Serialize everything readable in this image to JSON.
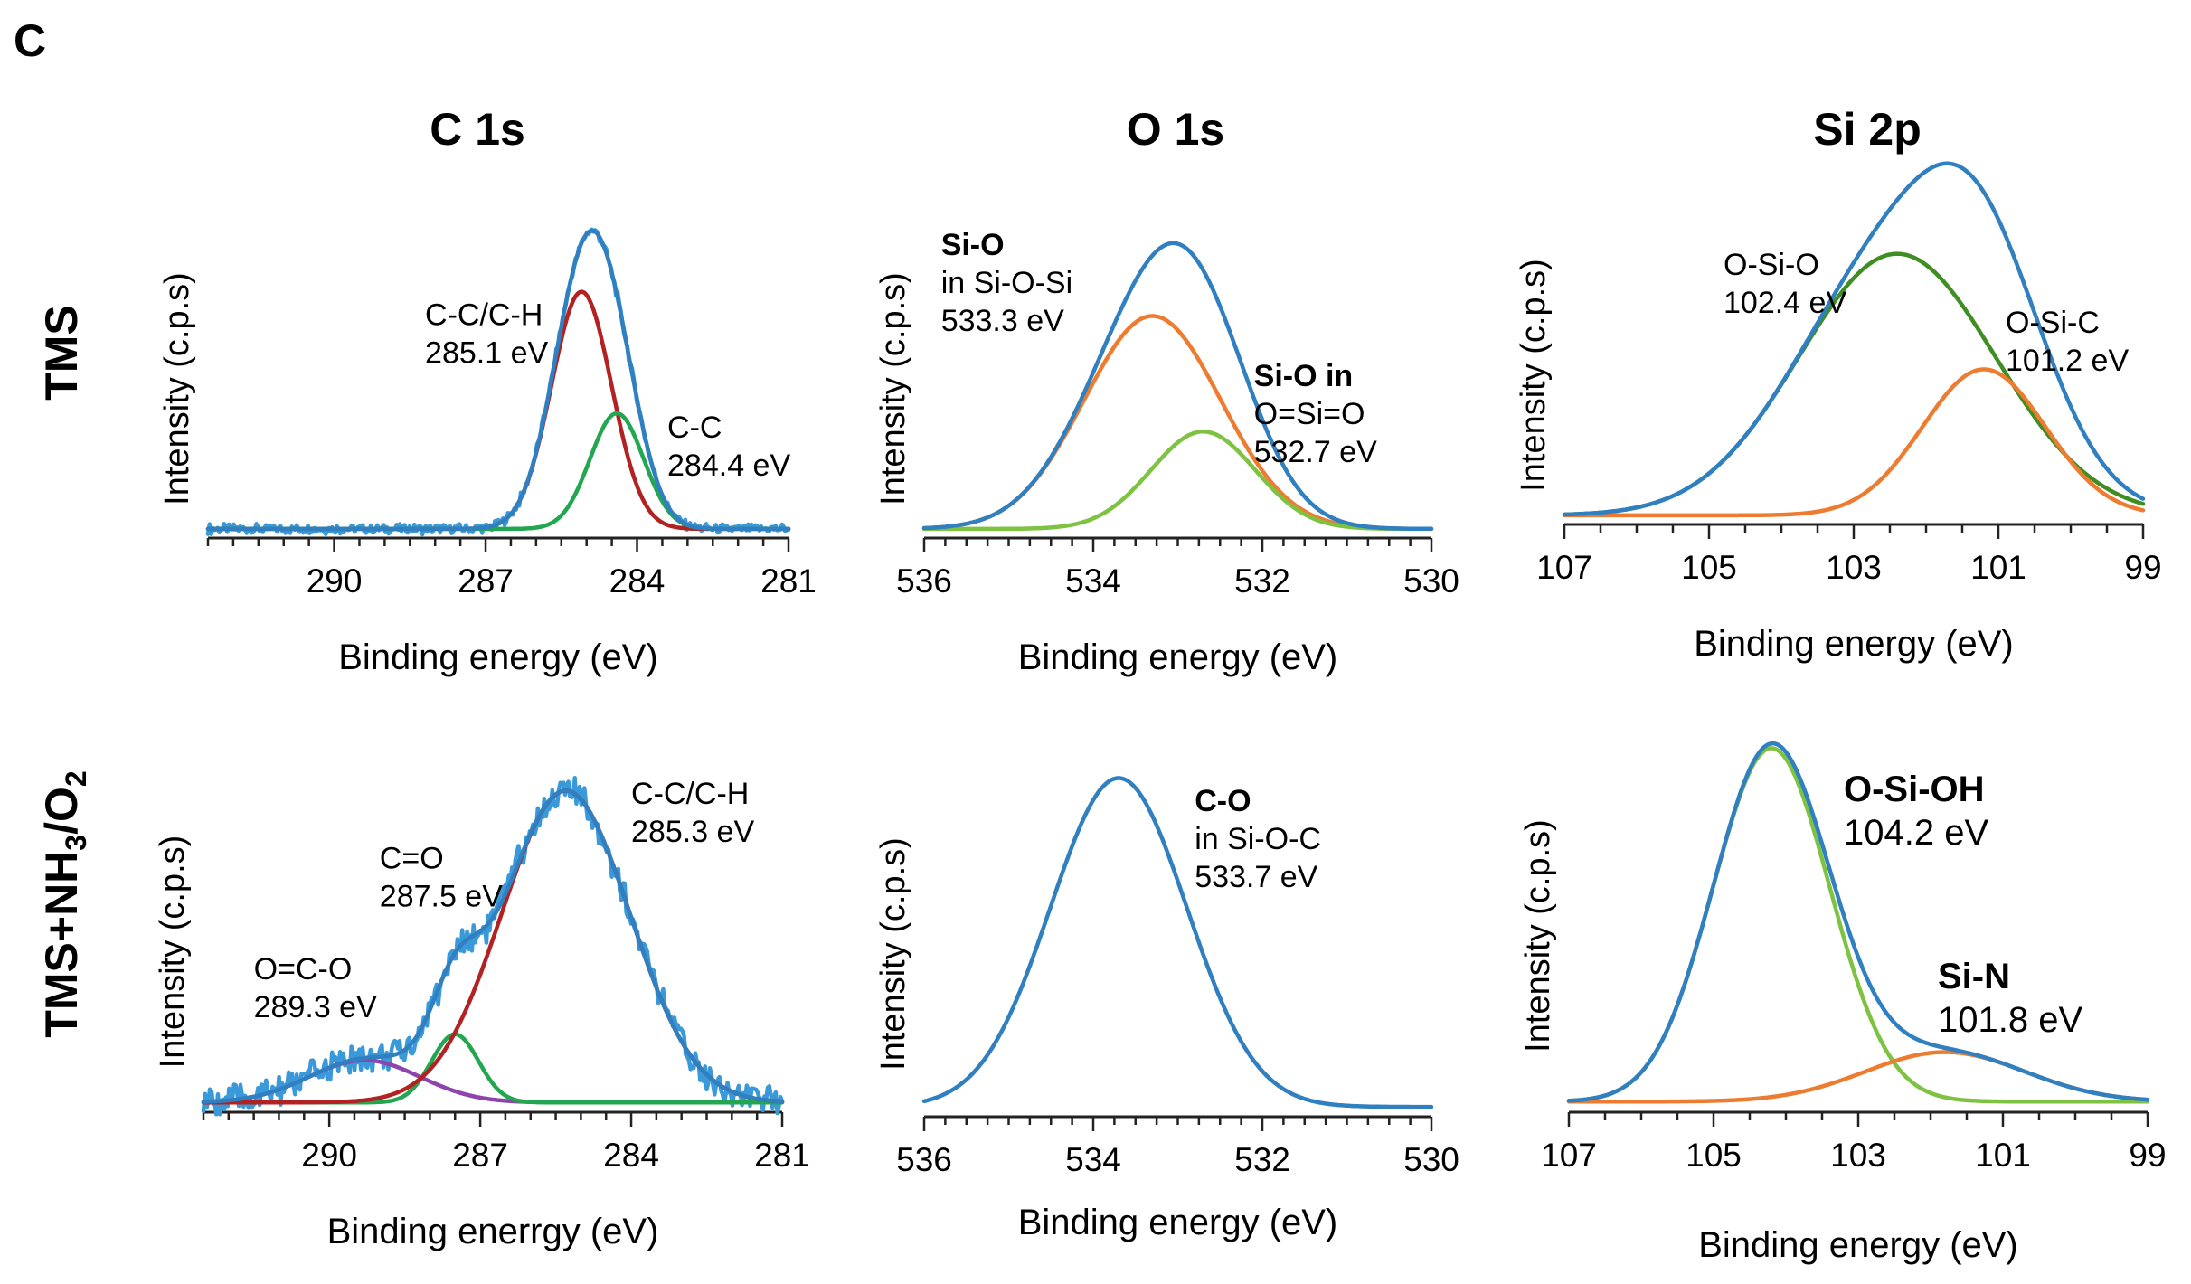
{
  "figure": {
    "panel_letter": "C",
    "column_titles": [
      "C 1s",
      "O 1s",
      "Si 2p"
    ],
    "row_labels": [
      "TMS",
      "TMS+NH3/O2"
    ],
    "colors": {
      "envelope": "#2f7fc1",
      "raw": "#3a9ad9",
      "red": "#b22222",
      "green": "#22a650",
      "orange": "#ee7c30",
      "lightgreen": "#7ec242",
      "darkgreen": "#3e8e21",
      "purple": "#8e44ad"
    }
  },
  "chart_data": [
    {
      "id": "c1s-tms",
      "type": "line",
      "title": "C 1s",
      "row": "TMS",
      "xlabel": "Binding energy (eV)",
      "ylabel": "Intensity (c.p.s)",
      "xlim": [
        292.5,
        281
      ],
      "ylim": [
        0,
        1.1
      ],
      "xticks": [
        290,
        287,
        284,
        281
      ],
      "minor_step": 0.5,
      "noise": 0.012,
      "components": [
        {
          "name": "C-C/C-H",
          "center": 285.1,
          "fwhm": 1.4,
          "height": 0.78,
          "color": "red"
        },
        {
          "name": "C-C",
          "center": 284.4,
          "fwhm": 1.25,
          "height": 0.38,
          "color": "green"
        }
      ],
      "annotations": [
        {
          "lines": [
            "C-C/C-H",
            "285.1 eV"
          ],
          "x": 288.2,
          "y": 0.7,
          "style": "ann"
        },
        {
          "lines": [
            "C-C",
            "284.4 eV"
          ],
          "x": 283.4,
          "y": 0.33,
          "style": "ann"
        }
      ]
    },
    {
      "id": "o1s-tms",
      "type": "line",
      "title": "O 1s",
      "row": "TMS",
      "xlabel": "Binding energy (eV)",
      "ylabel": "Intensity (c.p.s)",
      "xlim": [
        536,
        530
      ],
      "ylim": [
        0,
        1.1
      ],
      "xticks": [
        536,
        534,
        532,
        530
      ],
      "minor_step": 0.25,
      "noise": 0,
      "components": [
        {
          "name": "Si-O in Si-O-Si",
          "center": 533.3,
          "fwhm": 1.9,
          "height": 0.7,
          "color": "orange"
        },
        {
          "name": "Si-O in O=Si=O",
          "center": 532.7,
          "fwhm": 1.45,
          "height": 0.32,
          "color": "lightgreen"
        }
      ],
      "annotations": [
        {
          "lines": [
            "Si-O",
            "in Si-O-Si",
            "533.3 eV"
          ],
          "x": 535.8,
          "y": 0.93,
          "style": "ann",
          "bold_first": true
        },
        {
          "lines": [
            "Si-O in",
            "O=Si=O",
            "532.7 eV"
          ],
          "x": 532.1,
          "y": 0.5,
          "style": "ann",
          "bold_first": true
        }
      ]
    },
    {
      "id": "si2p-tms",
      "type": "line",
      "title": "Si 2p",
      "row": "TMS",
      "xlabel": "Binding energy (eV)",
      "ylabel": "Intensity (c.p.s)",
      "xlim": [
        107,
        99
      ],
      "ylim": [
        0,
        1.1
      ],
      "xticks": [
        107,
        105,
        103,
        101,
        99
      ],
      "minor_step": 0.5,
      "noise": 0,
      "components": [
        {
          "name": "O-Si-O",
          "center": 102.4,
          "fwhm": 3.2,
          "height": 0.86,
          "color": "darkgreen"
        },
        {
          "name": "O-Si-C",
          "center": 101.2,
          "fwhm": 2.0,
          "height": 0.48,
          "color": "orange"
        }
      ],
      "annotations": [
        {
          "lines": [
            "O-Si-O",
            "102.4 eV"
          ],
          "x": 104.8,
          "y": 0.82,
          "style": "ann"
        },
        {
          "lines": [
            "O-Si-C",
            "101.2 eV"
          ],
          "x": 100.9,
          "y": 0.63,
          "style": "ann"
        }
      ]
    },
    {
      "id": "c1s-nh3",
      "type": "line",
      "title": "C 1s",
      "row": "TMS+NH3/O2",
      "xlabel": "Binding enerrgy (eV)",
      "ylabel": "Intensity (c.p.s)",
      "xlim": [
        292.5,
        281
      ],
      "ylim": [
        0,
        1.1
      ],
      "xticks": [
        290,
        287,
        284,
        281
      ],
      "minor_step": 0.5,
      "noise": 0.035,
      "components": [
        {
          "name": "O=C-O",
          "center": 289.3,
          "fwhm": 2.6,
          "height": 0.13,
          "color": "purple"
        },
        {
          "name": "C=O",
          "center": 287.5,
          "fwhm": 1.1,
          "height": 0.21,
          "color": "green"
        },
        {
          "name": "C-C/C-H",
          "center": 285.3,
          "fwhm": 3.0,
          "height": 0.96,
          "color": "red"
        }
      ],
      "annotations": [
        {
          "lines": [
            "O=C-O",
            "289.3 eV"
          ],
          "x": 291.5,
          "y": 0.41,
          "style": "ann"
        },
        {
          "lines": [
            "C=O",
            "287.5 eV"
          ],
          "x": 289.0,
          "y": 0.75,
          "style": "ann"
        },
        {
          "lines": [
            "C-C/C-H",
            "285.3 eV"
          ],
          "x": 284.0,
          "y": 0.95,
          "style": "ann"
        }
      ]
    },
    {
      "id": "o1s-nh3",
      "type": "line",
      "title": "O 1s",
      "row": "TMS+NH3/O2",
      "xlabel": "Binding energy (eV)",
      "ylabel": "Intensity (c.p.s)",
      "xlim": [
        536,
        530
      ],
      "ylim": [
        0,
        1.1
      ],
      "xticks": [
        536,
        534,
        532,
        530
      ],
      "minor_step": 0.25,
      "noise": 0,
      "components": [],
      "envelope_only": {
        "center": 533.7,
        "fwhm": 1.9,
        "height": 1.0
      },
      "annotations": [
        {
          "lines": [
            "C-O",
            "in Si-O-C",
            "533.7 eV"
          ],
          "x": 532.8,
          "y": 0.93,
          "style": "ann",
          "bold_first": true
        }
      ]
    },
    {
      "id": "si2p-nh3",
      "type": "line",
      "title": "Si 2p",
      "row": "TMS+NH3/O2",
      "xlabel": "Binding energy (eV)",
      "ylabel": "Intensity (c.p.s)",
      "xlim": [
        107,
        99
      ],
      "ylim": [
        0,
        1.1
      ],
      "xticks": [
        107,
        105,
        103,
        101,
        99
      ],
      "minor_step": 0.5,
      "noise": 0,
      "components": [
        {
          "name": "O-Si-OH",
          "center": 104.2,
          "fwhm": 1.9,
          "height": 1.0,
          "color": "lightgreen"
        },
        {
          "name": "Si-N",
          "center": 101.8,
          "fwhm": 2.6,
          "height": 0.14,
          "color": "orange"
        }
      ],
      "annotations": [
        {
          "lines": [
            "O-Si-OH",
            "104.2 eV"
          ],
          "x": 103.2,
          "y": 0.88,
          "style": "ann-lg",
          "bold_first": true
        },
        {
          "lines": [
            "Si-N",
            "101.8 eV"
          ],
          "x": 101.9,
          "y": 0.35,
          "style": "ann-lg",
          "bold_first": true
        }
      ]
    }
  ]
}
